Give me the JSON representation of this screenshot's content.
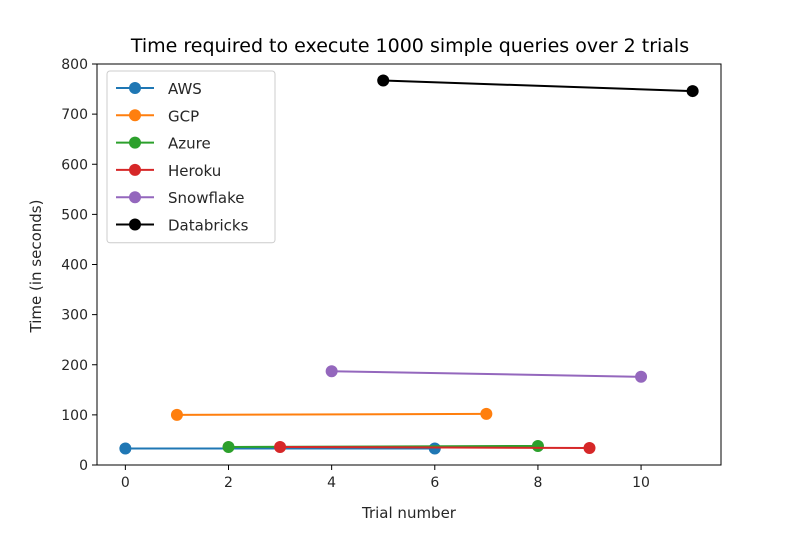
{
  "chart_data": {
    "type": "line",
    "title": "Time required to execute 1000 simple queries over 2 trials",
    "xlabel": "Trial number",
    "ylabel": "Time (in seconds)",
    "xlim": [
      -0.55,
      11.55
    ],
    "ylim": [
      0,
      800
    ],
    "x_ticks": [
      0,
      2,
      4,
      6,
      8,
      10
    ],
    "y_ticks": [
      0,
      100,
      200,
      300,
      400,
      500,
      600,
      700,
      800
    ],
    "grid": false,
    "legend_position": "top-left",
    "series": [
      {
        "name": "AWS",
        "color": "#1f77b4",
        "x": [
          0,
          6
        ],
        "y": [
          33,
          33
        ]
      },
      {
        "name": "GCP",
        "color": "#ff7f0e",
        "x": [
          1,
          7
        ],
        "y": [
          100,
          102
        ]
      },
      {
        "name": "Azure",
        "color": "#2ca02c",
        "x": [
          2,
          8
        ],
        "y": [
          36,
          38
        ]
      },
      {
        "name": "Heroku",
        "color": "#d62728",
        "x": [
          3,
          9
        ],
        "y": [
          36,
          34
        ]
      },
      {
        "name": "Snowflake",
        "color": "#9467bd",
        "x": [
          4,
          10
        ],
        "y": [
          187,
          176
        ]
      },
      {
        "name": "Databricks",
        "color": "#000000",
        "x": [
          5,
          11
        ],
        "y": [
          767,
          746
        ]
      }
    ]
  }
}
